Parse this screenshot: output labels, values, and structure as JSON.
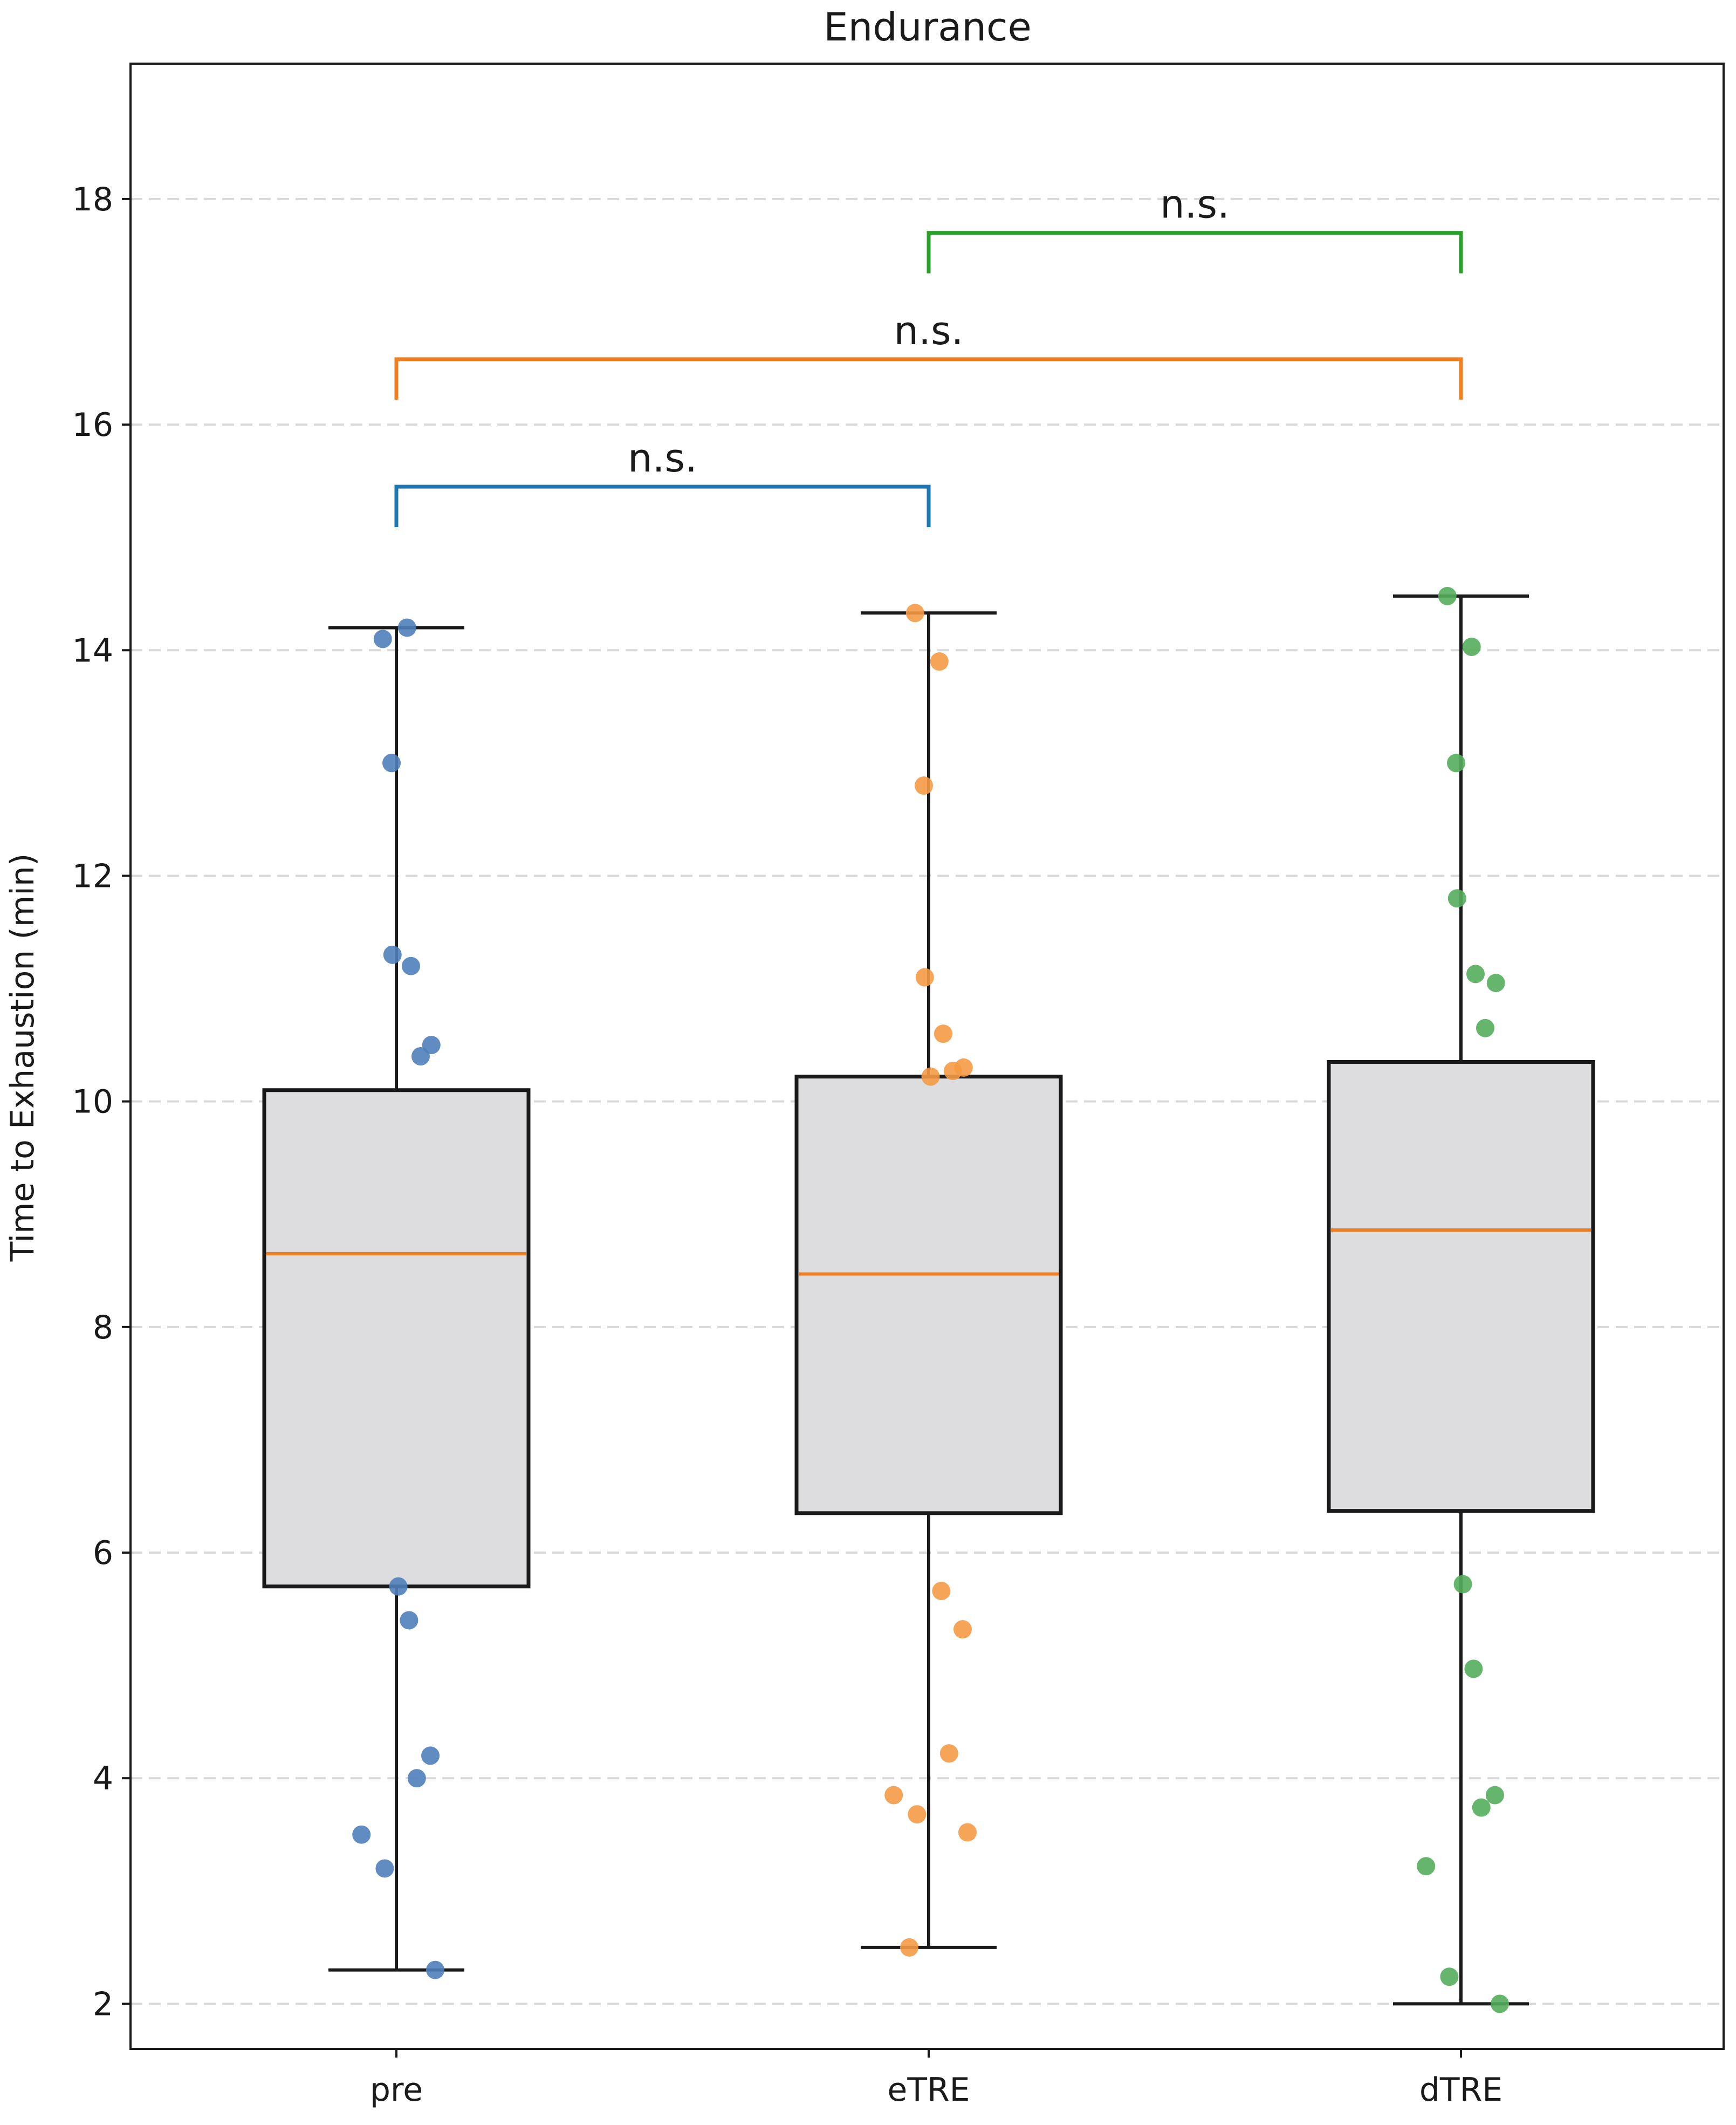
{
  "chart_data": {
    "type": "box",
    "title": "Endurance",
    "xlabel": "",
    "ylabel": "Time to Exhaustion (min)",
    "ylim": [
      1.6,
      19.2
    ],
    "yticks": [
      2,
      4,
      6,
      8,
      10,
      12,
      14,
      16,
      18
    ],
    "grid": "horizontal dashed",
    "categories": [
      "pre",
      "eTRE",
      "dTRE"
    ],
    "colors": {
      "pre": "#4f7fbb",
      "eTRE": "#f59a45",
      "dTRE": "#55ad5c",
      "median": "#f07f22",
      "box_fill": "#dddde0",
      "box_edge": "#1a1a1a",
      "grid": "#d9d9d9"
    },
    "boxes": [
      {
        "name": "pre",
        "whisker_low": 2.3,
        "q1": 5.7,
        "median": 8.65,
        "q3": 10.1,
        "whisker_high": 14.2
      },
      {
        "name": "eTRE",
        "whisker_low": 2.5,
        "q1": 6.35,
        "median": 8.47,
        "q3": 10.22,
        "whisker_high": 14.33
      },
      {
        "name": "dTRE",
        "whisker_low": 2.0,
        "q1": 6.37,
        "median": 8.86,
        "q3": 10.35,
        "whisker_high": 14.48
      }
    ],
    "points": {
      "pre": [
        14.1,
        14.2,
        13.0,
        11.3,
        11.2,
        10.5,
        10.4,
        5.7,
        5.4,
        4.2,
        4.0,
        3.5,
        3.2,
        2.3
      ],
      "eTRE": [
        14.33,
        13.9,
        12.8,
        11.1,
        10.6,
        10.3,
        10.27,
        10.22,
        5.66,
        5.32,
        4.22,
        3.85,
        3.68,
        3.52,
        2.5
      ],
      "dTRE": [
        14.48,
        14.03,
        13.0,
        11.8,
        11.13,
        11.05,
        10.65,
        5.72,
        4.97,
        3.85,
        3.74,
        3.22,
        2.24,
        2.0
      ]
    },
    "annotations": [
      {
        "from": "pre",
        "to": "eTRE",
        "label": "n.s.",
        "y": 15.45,
        "color": "#1f77b4"
      },
      {
        "from": "pre",
        "to": "dTRE",
        "label": "n.s.",
        "y": 16.58,
        "color": "#f07f22"
      },
      {
        "from": "eTRE",
        "to": "dTRE",
        "label": "n.s.",
        "y": 17.7,
        "color": "#2ca02c"
      }
    ]
  }
}
